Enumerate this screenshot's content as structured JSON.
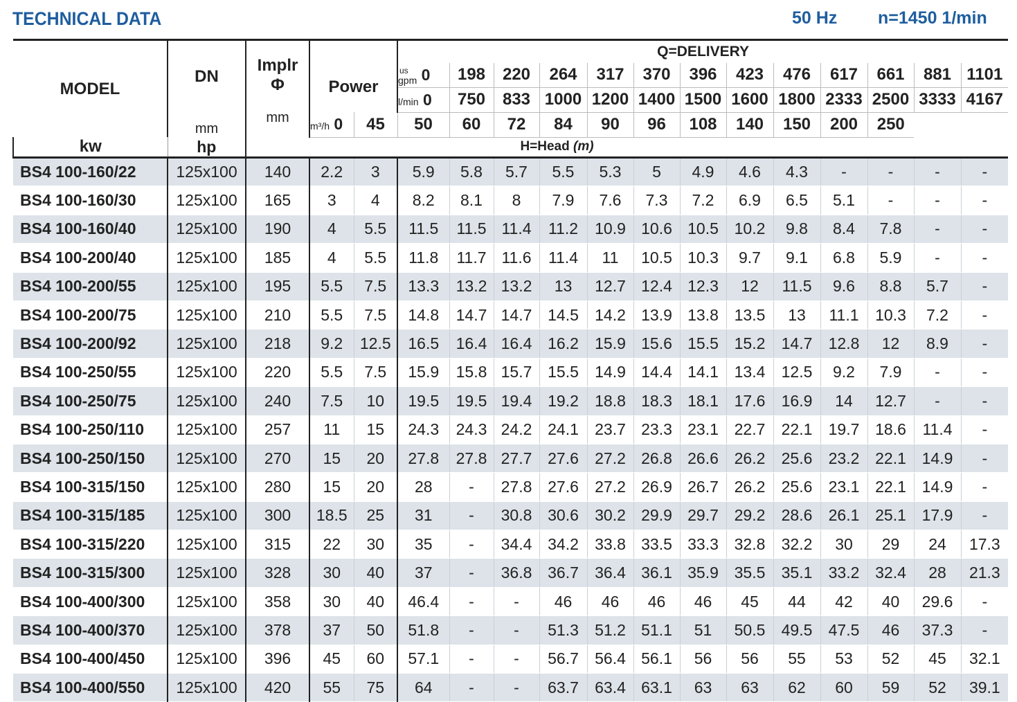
{
  "title": "TECHNICAL DATA",
  "frequency": "50 Hz",
  "speed": "n=1450 1/min",
  "headers": {
    "model": "MODEL",
    "dn": "DN",
    "dn_unit": "mm",
    "impeller": "Implr",
    "impeller_sym": "Φ",
    "impeller_unit": "mm",
    "power": "Power",
    "kw": "kw",
    "hp": "hp",
    "delivery": "Q=DELIVERY",
    "head": "H=Head",
    "head_unit": "(m)",
    "gpm_label_top": "us",
    "gpm_label": "gpm",
    "lmin_label": "l/min",
    "m3h_label": "m³/h"
  },
  "flow": {
    "gpm": [
      "0",
      "198",
      "220",
      "264",
      "317",
      "370",
      "396",
      "423",
      "476",
      "617",
      "661",
      "881",
      "1101"
    ],
    "lmin": [
      "0",
      "750",
      "833",
      "1000",
      "1200",
      "1400",
      "1500",
      "1600",
      "1800",
      "2333",
      "2500",
      "3333",
      "4167"
    ],
    "m3h": [
      "0",
      "45",
      "50",
      "60",
      "72",
      "84",
      "90",
      "96",
      "108",
      "140",
      "150",
      "200",
      "250"
    ]
  },
  "rows": [
    [
      "BS4 100-160/22",
      "125x100",
      "140",
      "2.2",
      "3",
      "5.9",
      "5.8",
      "5.7",
      "5.5",
      "5.3",
      "5",
      "4.9",
      "4.6",
      "4.3",
      "-",
      "-",
      "-",
      "-"
    ],
    [
      "BS4 100-160/30",
      "125x100",
      "165",
      "3",
      "4",
      "8.2",
      "8.1",
      "8",
      "7.9",
      "7.6",
      "7.3",
      "7.2",
      "6.9",
      "6.5",
      "5.1",
      "-",
      "-",
      "-"
    ],
    [
      "BS4 100-160/40",
      "125x100",
      "190",
      "4",
      "5.5",
      "11.5",
      "11.5",
      "11.4",
      "11.2",
      "10.9",
      "10.6",
      "10.5",
      "10.2",
      "9.8",
      "8.4",
      "7.8",
      "-",
      "-"
    ],
    [
      "BS4 100-200/40",
      "125x100",
      "185",
      "4",
      "5.5",
      "11.8",
      "11.7",
      "11.6",
      "11.4",
      "11",
      "10.5",
      "10.3",
      "9.7",
      "9.1",
      "6.8",
      "5.9",
      "-",
      "-"
    ],
    [
      "BS4 100-200/55",
      "125x100",
      "195",
      "5.5",
      "7.5",
      "13.3",
      "13.2",
      "13.2",
      "13",
      "12.7",
      "12.4",
      "12.3",
      "12",
      "11.5",
      "9.6",
      "8.8",
      "5.7",
      "-"
    ],
    [
      "BS4 100-200/75",
      "125x100",
      "210",
      "5.5",
      "7.5",
      "14.8",
      "14.7",
      "14.7",
      "14.5",
      "14.2",
      "13.9",
      "13.8",
      "13.5",
      "13",
      "11.1",
      "10.3",
      "7.2",
      "-"
    ],
    [
      "BS4 100-200/92",
      "125x100",
      "218",
      "9.2",
      "12.5",
      "16.5",
      "16.4",
      "16.4",
      "16.2",
      "15.9",
      "15.6",
      "15.5",
      "15.2",
      "14.7",
      "12.8",
      "12",
      "8.9",
      "-"
    ],
    [
      "BS4 100-250/55",
      "125x100",
      "220",
      "5.5",
      "7.5",
      "15.9",
      "15.8",
      "15.7",
      "15.5",
      "14.9",
      "14.4",
      "14.1",
      "13.4",
      "12.5",
      "9.2",
      "7.9",
      "-",
      "-"
    ],
    [
      "BS4 100-250/75",
      "125x100",
      "240",
      "7.5",
      "10",
      "19.5",
      "19.5",
      "19.4",
      "19.2",
      "18.8",
      "18.3",
      "18.1",
      "17.6",
      "16.9",
      "14",
      "12.7",
      "-",
      "-"
    ],
    [
      "BS4 100-250/110",
      "125x100",
      "257",
      "11",
      "15",
      "24.3",
      "24.3",
      "24.2",
      "24.1",
      "23.7",
      "23.3",
      "23.1",
      "22.7",
      "22.1",
      "19.7",
      "18.6",
      "11.4",
      "-"
    ],
    [
      "BS4 100-250/150",
      "125x100",
      "270",
      "15",
      "20",
      "27.8",
      "27.8",
      "27.7",
      "27.6",
      "27.2",
      "26.8",
      "26.6",
      "26.2",
      "25.6",
      "23.2",
      "22.1",
      "14.9",
      "-"
    ],
    [
      "BS4 100-315/150",
      "125x100",
      "280",
      "15",
      "20",
      "28",
      "-",
      "27.8",
      "27.6",
      "27.2",
      "26.9",
      "26.7",
      "26.2",
      "25.6",
      "23.1",
      "22.1",
      "14.9",
      "-"
    ],
    [
      "BS4 100-315/185",
      "125x100",
      "300",
      "18.5",
      "25",
      "31",
      "-",
      "30.8",
      "30.6",
      "30.2",
      "29.9",
      "29.7",
      "29.2",
      "28.6",
      "26.1",
      "25.1",
      "17.9",
      "-"
    ],
    [
      "BS4 100-315/220",
      "125x100",
      "315",
      "22",
      "30",
      "35",
      "-",
      "34.4",
      "34.2",
      "33.8",
      "33.5",
      "33.3",
      "32.8",
      "32.2",
      "30",
      "29",
      "24",
      "17.3"
    ],
    [
      "BS4 100-315/300",
      "125x100",
      "328",
      "30",
      "40",
      "37",
      "-",
      "36.8",
      "36.7",
      "36.4",
      "36.1",
      "35.9",
      "35.5",
      "35.1",
      "33.2",
      "32.4",
      "28",
      "21.3"
    ],
    [
      "BS4 100-400/300",
      "125x100",
      "358",
      "30",
      "40",
      "46.4",
      "-",
      "-",
      "46",
      "46",
      "46",
      "46",
      "45",
      "44",
      "42",
      "40",
      "29.6",
      "-"
    ],
    [
      "BS4 100-400/370",
      "125x100",
      "378",
      "37",
      "50",
      "51.8",
      "-",
      "-",
      "51.3",
      "51.2",
      "51.1",
      "51",
      "50.5",
      "49.5",
      "47.5",
      "46",
      "37.3",
      "-"
    ],
    [
      "BS4 100-400/450",
      "125x100",
      "396",
      "45",
      "60",
      "57.1",
      "-",
      "-",
      "56.7",
      "56.4",
      "56.1",
      "56",
      "56",
      "55",
      "53",
      "52",
      "45",
      "32.1"
    ],
    [
      "BS4 100-400/550",
      "125x100",
      "420",
      "55",
      "75",
      "64",
      "-",
      "-",
      "63.7",
      "63.4",
      "63.1",
      "63",
      "63",
      "62",
      "60",
      "59",
      "52",
      "39.1"
    ]
  ]
}
